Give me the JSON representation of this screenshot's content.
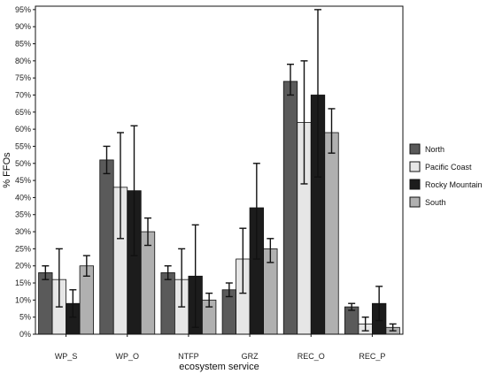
{
  "chart_data": {
    "type": "bar",
    "title": "",
    "xlabel": "ecosystem service",
    "ylabel": "% FFOs",
    "ylim": [
      0,
      96
    ],
    "yticks": [
      0,
      5,
      10,
      15,
      20,
      25,
      30,
      35,
      40,
      45,
      50,
      55,
      60,
      65,
      70,
      75,
      80,
      85,
      90,
      95
    ],
    "ytick_suffix": "%",
    "categories": [
      "WP_S",
      "WP_O",
      "NTFP",
      "GRZ",
      "REC_O",
      "REC_P"
    ],
    "legend_position": "right",
    "grid": false,
    "error_bars": true,
    "series": [
      {
        "name": "North",
        "color": "#5a5a5a",
        "values": [
          18,
          51,
          18,
          13,
          74,
          8
        ],
        "err_low": [
          16,
          47,
          16,
          11,
          70,
          7
        ],
        "err_high": [
          20,
          55,
          20,
          15,
          79,
          9
        ]
      },
      {
        "name": "Pacific Coast",
        "color": "#e6e6e6",
        "values": [
          16,
          43,
          16,
          22,
          62,
          3
        ],
        "err_low": [
          8,
          28,
          8,
          12,
          44,
          1
        ],
        "err_high": [
          25,
          59,
          25,
          31,
          80,
          5
        ]
      },
      {
        "name": "Rocky Mountain",
        "color": "#1c1c1c",
        "values": [
          9,
          42,
          17,
          37,
          70,
          9
        ],
        "err_low": [
          5,
          23,
          2,
          22,
          46,
          4
        ],
        "err_high": [
          13,
          61,
          32,
          50,
          95,
          14
        ]
      },
      {
        "name": "South",
        "color": "#b0b0b0",
        "values": [
          20,
          30,
          10,
          25,
          59,
          2
        ],
        "err_low": [
          17,
          26,
          8,
          21,
          53,
          1
        ],
        "err_high": [
          23,
          34,
          12,
          28,
          66,
          3
        ]
      }
    ]
  }
}
